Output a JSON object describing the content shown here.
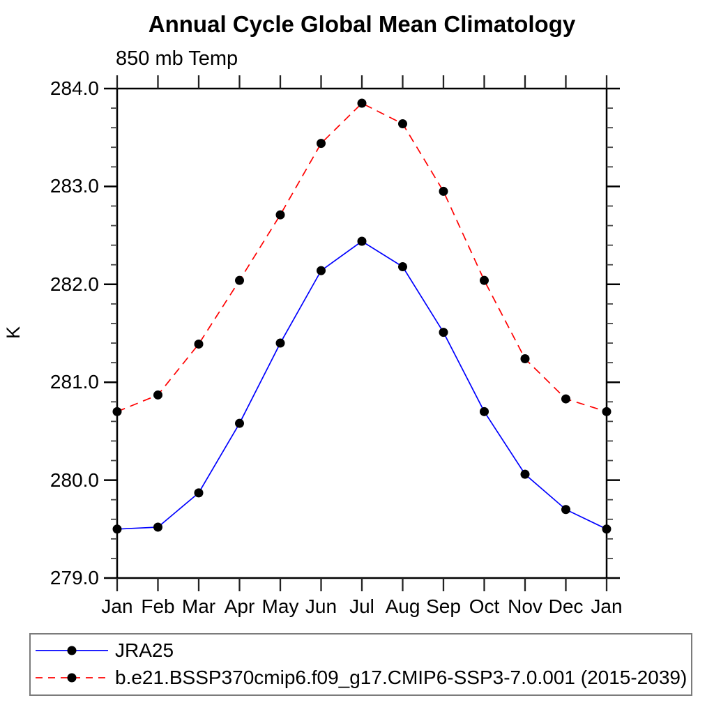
{
  "page": {
    "background": "#ffffff"
  },
  "chart_data": {
    "type": "line",
    "title": "Annual Cycle Global Mean Climatology",
    "subtitle": "850 mb Temp",
    "ylabel": "K",
    "xlabel": "",
    "ylim": [
      279.0,
      284.0
    ],
    "ytick_values": [
      279.0,
      280.0,
      281.0,
      282.0,
      283.0,
      284.0
    ],
    "ytick_labels": [
      "279.0",
      "280.0",
      "281.0",
      "282.0",
      "283.0",
      "284.0"
    ],
    "ytick_minor_step": 0.2,
    "grid": false,
    "legend_position": "bottom-left",
    "categories": [
      "Jan",
      "Feb",
      "Mar",
      "Apr",
      "May",
      "Jun",
      "Jul",
      "Aug",
      "Sep",
      "Oct",
      "Nov",
      "Dec",
      "Jan"
    ],
    "series": [
      {
        "name": "JRA25",
        "color": "#0000ff",
        "line_style": "solid",
        "marker": "filled-circle",
        "marker_color": "#000000",
        "values": [
          279.5,
          279.52,
          279.87,
          280.58,
          281.4,
          282.14,
          282.44,
          282.18,
          281.51,
          280.7,
          280.06,
          279.7,
          279.5
        ]
      },
      {
        "name": "b.e21.BSSP370cmip6.f09_g17.CMIP6-SSP3-7.0.001 (2015-2039)",
        "color": "#ff0000",
        "line_style": "dashed",
        "marker": "filled-circle",
        "marker_color": "#000000",
        "values": [
          280.7,
          280.87,
          281.39,
          282.04,
          282.71,
          283.44,
          283.85,
          283.64,
          282.95,
          282.04,
          281.24,
          280.83,
          280.7
        ]
      }
    ]
  }
}
